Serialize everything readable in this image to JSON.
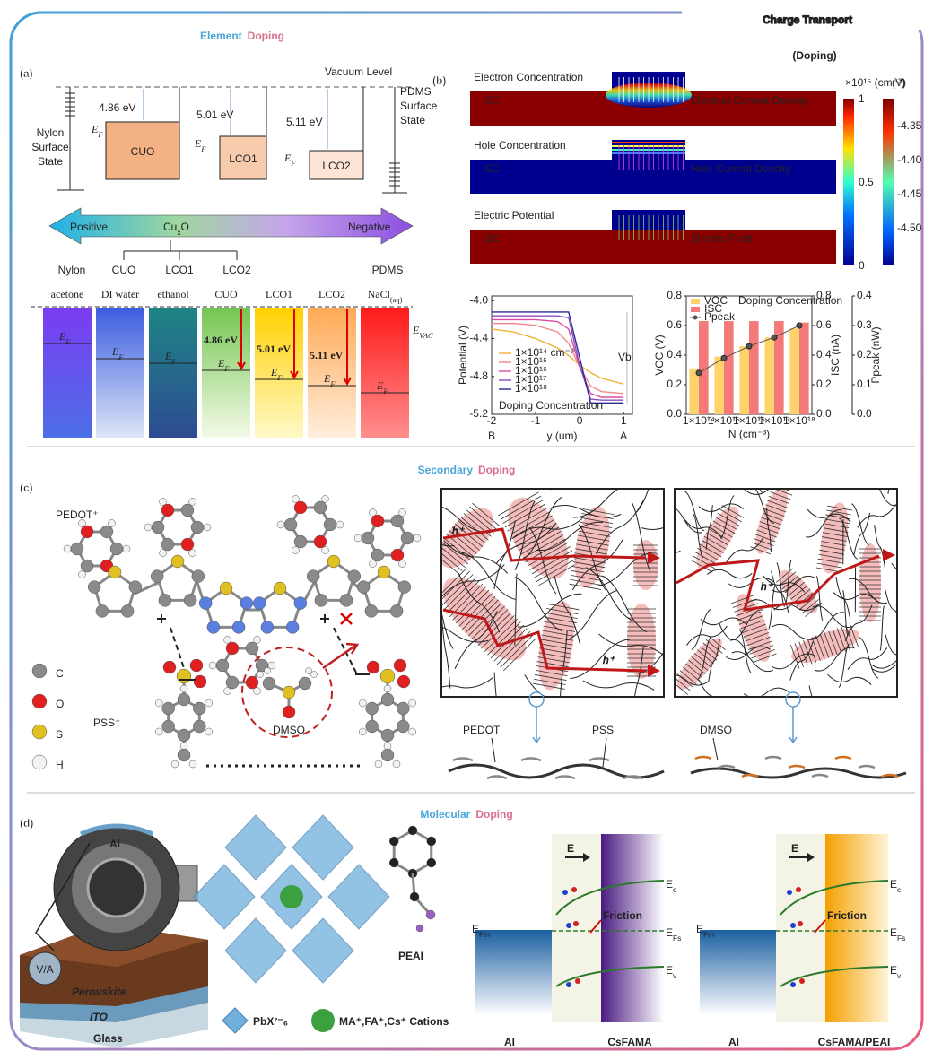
{
  "header": {
    "title": "Charge Transport",
    "subtitle": "(Doping)"
  },
  "sections": [
    {
      "words": [
        "Element",
        "Doping"
      ]
    },
    {
      "words": [
        "Secondary",
        "Doping"
      ]
    },
    {
      "words": [
        "Molecular",
        "Doping"
      ]
    }
  ],
  "panel_labels": [
    "(a)",
    "(b)",
    "(c)",
    "(d)"
  ],
  "panel_a": {
    "vacuum_level": "Vacuum Level",
    "nylon_state": [
      "Nylon",
      "Surface",
      "State"
    ],
    "pdms_state": [
      "PDMS",
      "Surface",
      "State"
    ],
    "materials": [
      {
        "name": "CUO",
        "work_function": "4.86 eV"
      },
      {
        "name": "LCO1",
        "work_function": "5.01 eV"
      },
      {
        "name": "LCO2",
        "work_function": "5.11 eV"
      }
    ],
    "fermi": {
      "main": "E",
      "sub": "F"
    },
    "series_arrow": {
      "left": "Positive",
      "middle": {
        "main": "Cu",
        "sub": "x",
        "tail": "O"
      },
      "right": "Negative"
    },
    "series_labels": [
      "Nylon",
      "CUO",
      "LCO1",
      "LCO2",
      "PDMS"
    ],
    "liquids": [
      {
        "name": {
          "main": "acetone"
        }
      },
      {
        "name": {
          "main": "DI water"
        }
      },
      {
        "name": {
          "main": "ethanol"
        }
      },
      {
        "name": {
          "main": "CUO"
        },
        "gap": "4.86 eV"
      },
      {
        "name": {
          "main": "LCO1"
        },
        "gap": "5.01 eV"
      },
      {
        "name": {
          "main": "LCO2"
        },
        "gap": "5.11 eV"
      },
      {
        "name": {
          "main": "NaCl",
          "sub": "(aq)"
        }
      }
    ],
    "vacuum": {
      "main": "E",
      "sub": "VAC"
    }
  },
  "panel_b": {
    "maps": [
      {
        "title": "Electron Concentration",
        "region": "SC",
        "field": "Electron Current Density"
      },
      {
        "title": "Hole Concentration",
        "region": "SC",
        "field": "Hole Current Density"
      },
      {
        "title": "Electric Potential",
        "region": "OC",
        "field": "Electric Field"
      }
    ],
    "colorbars": [
      {
        "unit": "×10¹⁵ (cm⁻³)",
        "ticks": [
          "1",
          "0.5",
          "0"
        ]
      },
      {
        "unit": "(V)",
        "ticks": [
          "-4.35",
          "-4.40",
          "-4.45",
          "-4.50"
        ]
      }
    ]
  },
  "chart_data": [
    {
      "type": "line",
      "ylabel": "Potential (V)",
      "xlabel": "y (um)",
      "x": [
        -2,
        -1.5,
        -1,
        -0.5,
        -0.25,
        0,
        0.25,
        0.5,
        1
      ],
      "xlim": [
        -2,
        1.2
      ],
      "xticks": [
        -2,
        -1,
        0,
        1
      ],
      "ylim": [
        -5.2,
        -3.95
      ],
      "yticks": [
        {
          "value": -4.0,
          "label": "-4.0"
        },
        -4.4,
        -4.8,
        -5.2
      ],
      "end_labels": [
        "B",
        "A"
      ],
      "annotation": "Vbi",
      "legend_title": "Doping Concentration",
      "series": [
        {
          "name": "1×10¹⁴ cm⁻³",
          "color": "#f2b134",
          "values": [
            -4.3,
            -4.33,
            -4.4,
            -4.5,
            -4.58,
            -4.68,
            -4.76,
            -4.82,
            -4.88
          ]
        },
        {
          "name": "1×10¹⁵",
          "color": "#f08a8a",
          "values": [
            -4.24,
            -4.24,
            -4.26,
            -4.33,
            -4.45,
            -4.7,
            -4.9,
            -4.96,
            -4.98
          ]
        },
        {
          "name": "1×10¹⁶",
          "color": "#d94fa8",
          "values": [
            -4.2,
            -4.2,
            -4.2,
            -4.22,
            -4.3,
            -4.7,
            -4.98,
            -5.02,
            -5.02
          ]
        },
        {
          "name": "1×10¹⁷",
          "color": "#8a4fc0",
          "values": [
            -4.16,
            -4.16,
            -4.16,
            -4.16,
            -4.18,
            -4.68,
            -5.04,
            -5.05,
            -5.05
          ]
        },
        {
          "name": "1×10¹⁸",
          "color": "#2a2a9a",
          "values": [
            -4.12,
            -4.12,
            -4.12,
            -4.12,
            -4.12,
            -4.6,
            -5.08,
            -5.08,
            -5.08
          ]
        }
      ]
    },
    {
      "type": "bar",
      "categories": [
        "1×10¹⁴",
        "1×10¹⁵",
        "1×10¹⁶",
        "1×10¹⁷",
        "1×10¹⁸"
      ],
      "xlabel": "N (cm⁻³)",
      "legend_title": "Doping Concentration",
      "ylabel": "VOC (V)",
      "ylim": [
        0,
        0.8
      ],
      "yticks": [
        {
          "value": 0,
          "label": "0.0"
        },
        0.2,
        0.4,
        0.6,
        0.8
      ],
      "y2label": "ISC (nA)",
      "y2lim": [
        0,
        0.8
      ],
      "y2ticks": [
        {
          "value": 0,
          "label": "0.0"
        },
        0.2,
        0.4,
        0.6,
        0.8
      ],
      "y3label": "Ppeak (nW)",
      "y3lim": [
        0,
        0.4
      ],
      "y3ticks": [
        {
          "value": 0,
          "label": "0.0"
        },
        0.1,
        0.2,
        0.3,
        0.4
      ],
      "series": [
        {
          "name": "VOC",
          "color": "#ffd36b",
          "values": [
            0.31,
            0.39,
            0.46,
            0.52,
            0.58
          ]
        },
        {
          "name": "ISC",
          "color": "#f47a7a",
          "axis": "y2",
          "values": [
            0.63,
            0.63,
            0.63,
            0.63,
            0.62
          ]
        },
        {
          "name": "Ppeak",
          "color": "#555555",
          "axis": "y3",
          "type": "line",
          "values": [
            0.14,
            0.19,
            0.23,
            0.26,
            0.3
          ]
        }
      ]
    }
  ],
  "panel_c": {
    "pedot": "PEDOT⁺",
    "pss": "PSS⁻",
    "dmso": "DMSO",
    "legend": [
      "C",
      "O",
      "S",
      "H"
    ],
    "carriers": [
      "h⁺",
      "h⁺",
      "h⁺"
    ],
    "chain_labels": [
      "PEDOT",
      "PSS",
      "DMSO"
    ]
  },
  "panel_d": {
    "electrode": "Al",
    "meter": "V/A",
    "layers": [
      "Perovskite",
      "ITO",
      "Glass"
    ],
    "octahedron": "PbX²⁻₆",
    "cations": "MA⁺,FA⁺,Cs⁺ Cations",
    "molecule": "PEAI",
    "bands": [
      {
        "field": "E",
        "ec": {
          "main": "E",
          "sub": "c"
        },
        "efs": {
          "main": "E",
          "sub": "Fs"
        },
        "ev": {
          "main": "E",
          "sub": "v"
        },
        "efm": {
          "main": "E",
          "sub": "Fm"
        },
        "friction": "Friction",
        "metal": "Al",
        "semiconductor": "CsFAMA"
      },
      {
        "field": "E",
        "ec": {
          "main": "E",
          "sub": "c"
        },
        "efs": {
          "main": "E",
          "sub": "Fs"
        },
        "ev": {
          "main": "E",
          "sub": "v"
        },
        "efm": {
          "main": "E",
          "sub": "Fm"
        },
        "friction": "Friction",
        "metal": "Al",
        "semiconductor": "CsFAMA/PEAI"
      }
    ]
  }
}
